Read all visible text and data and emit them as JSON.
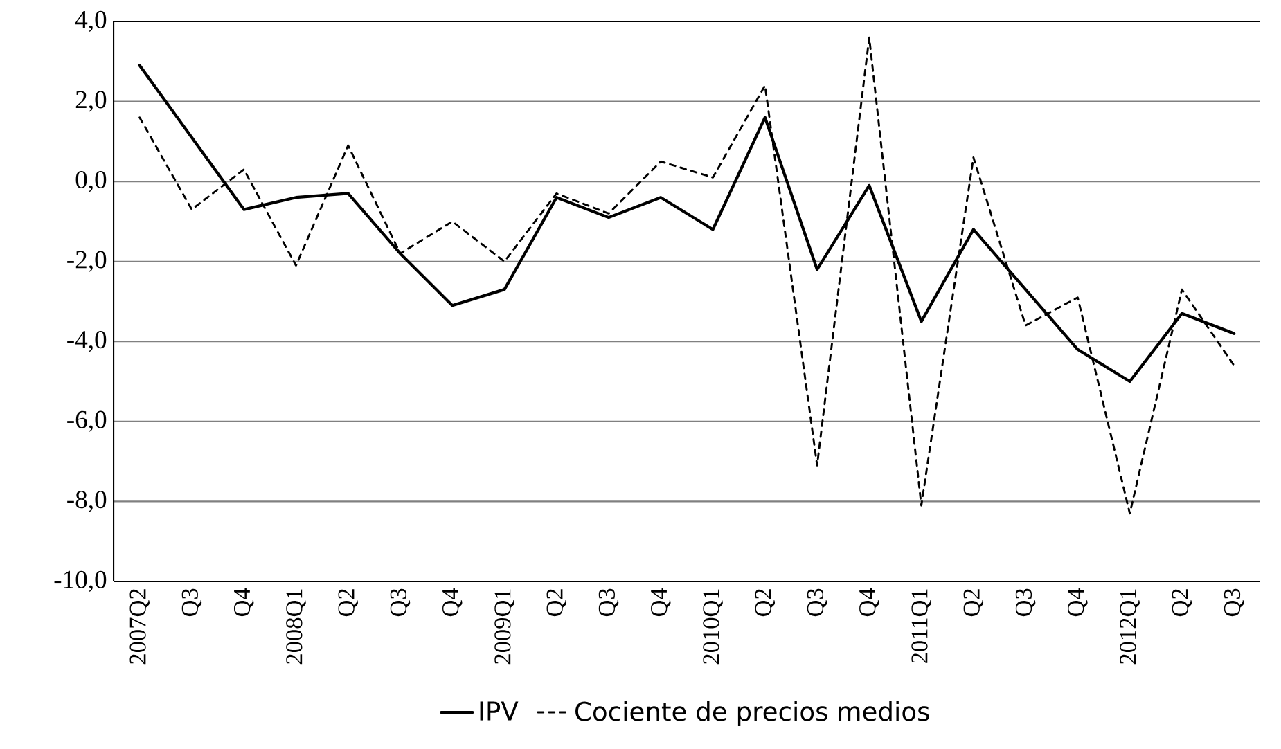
{
  "chart_data": {
    "type": "line",
    "categories": [
      "2007Q2",
      "Q3",
      "Q4",
      "2008Q1",
      "Q2",
      "Q3",
      "Q4",
      "2009Q1",
      "Q2",
      "Q3",
      "Q4",
      "2010Q1",
      "Q2",
      "Q3",
      "Q4",
      "2011Q1",
      "Q2",
      "Q3",
      "Q4",
      "2012Q1",
      "Q2",
      "Q3"
    ],
    "series": [
      {
        "name": "IPV",
        "color": "#000000",
        "line_style": "solid",
        "values": [
          2.9,
          1.1,
          -0.7,
          -0.4,
          -0.3,
          -1.8,
          -3.1,
          -2.7,
          -0.4,
          -0.9,
          -0.4,
          -1.2,
          1.6,
          -2.2,
          -0.1,
          -3.5,
          -1.2,
          -2.7,
          -4.2,
          -5.0,
          -3.3,
          -3.8
        ]
      },
      {
        "name": "Cociente de precios medios",
        "color": "#000000",
        "line_style": "dashed",
        "values": [
          1.6,
          -0.7,
          0.3,
          -2.1,
          0.9,
          -1.8,
          -1.0,
          -2.0,
          -0.3,
          -0.8,
          0.5,
          0.1,
          2.4,
          -7.1,
          3.6,
          -8.1,
          0.6,
          -3.6,
          -2.9,
          -8.3,
          -2.7,
          -4.6
        ]
      }
    ],
    "ylim": [
      -10,
      4
    ],
    "yticks": [
      {
        "value": -10,
        "label": "-10,0"
      },
      {
        "value": -8,
        "label": "-8,0"
      },
      {
        "value": -6,
        "label": "-6,0"
      },
      {
        "value": -4,
        "label": "-4,0"
      },
      {
        "value": -2,
        "label": "-2,0"
      },
      {
        "value": 0,
        "label": "0,0"
      },
      {
        "value": 2,
        "label": "2,0"
      },
      {
        "value": 4,
        "label": "4,0"
      }
    ],
    "grid": "y",
    "legend": "bottom",
    "marker": "none"
  }
}
